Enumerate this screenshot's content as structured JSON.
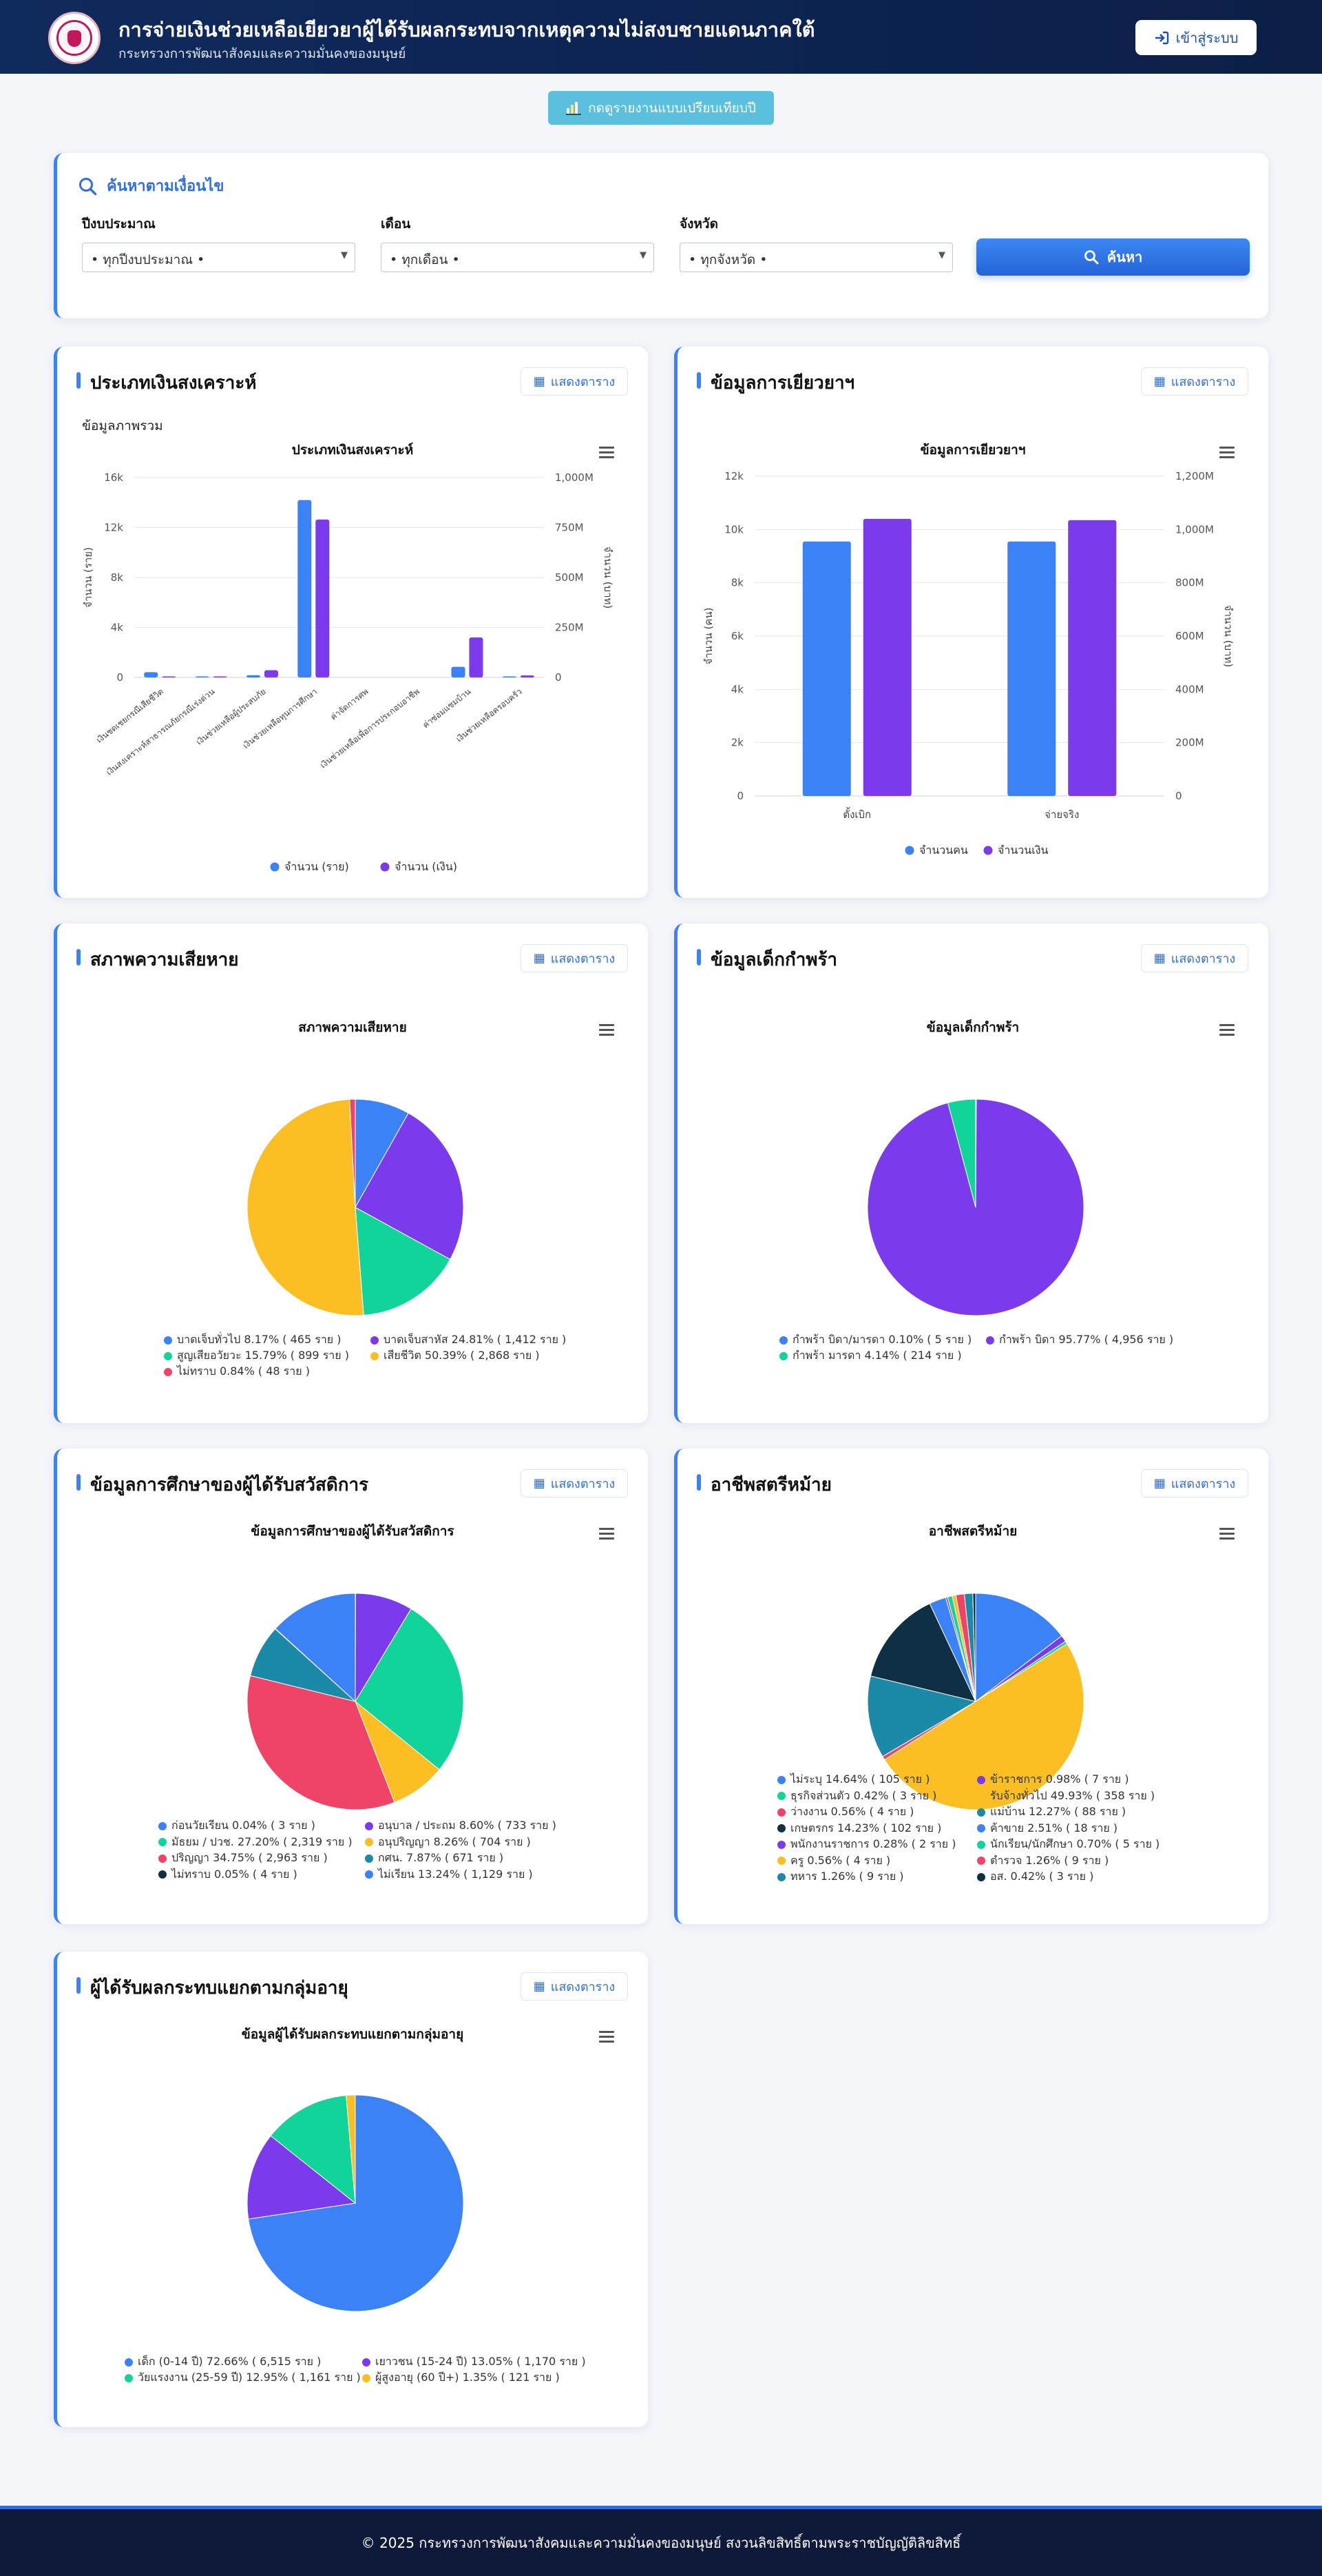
{
  "header": {
    "title": "การจ่ายเงินช่วยเหลือเยียวยาผู้ได้รับผลกระทบจากเหตุความไม่สงบชายแดนภาคใต้",
    "subtitle": "กระทรวงการพัฒนาสังคมและความมั่นคงของมนุษย์",
    "login_label": "เข้าสู่ระบบ"
  },
  "compare_button": "กดดูรายงานแบบเปรียบเทียบปี",
  "search": {
    "title": "ค้นหาตามเงื่อนไข",
    "fields": [
      {
        "label": "ปีงบประมาณ",
        "value": "• ทุกปีงบประมาณ •"
      },
      {
        "label": "เดือน",
        "value": "• ทุกเดือน •"
      },
      {
        "label": "จังหวัด",
        "value": "• ทุกจังหวัด •"
      }
    ],
    "button": "ค้นหา"
  },
  "table_button_label": "แสดงตาราง",
  "cards": {
    "welfare_type": {
      "title": "ประเภทเงินสงเคราะห์",
      "subtitle": "ข้อมูลภาพรวม",
      "chart_title": "ประเภทเงินสงเคราะห์"
    },
    "remedy": {
      "title": "ข้อมูลการเยียวยาฯ",
      "chart_title": "ข้อมูลการเยียวยาฯ"
    },
    "damage": {
      "title": "สภาพความเสียหาย",
      "chart_title": "สภาพความเสียหาย"
    },
    "orphan": {
      "title": "ข้อมูลเด็กกำพร้า",
      "chart_title": "ข้อมูลเด็กกำพร้า"
    },
    "education": {
      "title": "ข้อมูลการศึกษาของผู้ได้รับสวัสดิการ",
      "chart_title": "ข้อมูลการศึกษาของผู้ได้รับสวัสดิการ"
    },
    "widow": {
      "title": "อาชีพสตรีหม้าย",
      "chart_title": "อาชีพสตรีหม้าย"
    },
    "age": {
      "title": "ผู้ได้รับผลกระทบแยกตามกลุ่มอายุ",
      "chart_title": "ข้อมูลผู้ได้รับผลกระทบแยกตามกลุ่มอายุ"
    }
  },
  "footer": "© 2025 กระทรวงการพัฒนาสังคมและความมั่นคงของมนุษย์ สงวนลิขสิทธิ์ตามพระราชบัญญัติลิขสิทธิ์",
  "chart_data": [
    {
      "id": "welfare_type",
      "type": "bar",
      "title": "ประเภทเงินสงเคราะห์",
      "ylabel": "จำนวน (ราย)",
      "ylabel_right": "จำนวน (บาท)",
      "ylim": [
        0,
        16000
      ],
      "ylim_right": [
        0,
        1000000000
      ],
      "y_ticks": [
        "0",
        "4k",
        "8k",
        "12k",
        "16k"
      ],
      "y_ticks_right": [
        "0",
        "250M",
        "500M",
        "750M",
        "1,000M"
      ],
      "categories": [
        "เงินชดเชยกรณีเสียชีวิต",
        "เงินสงเคราะห์สาธารณภัยกรณีเร่งด่วน",
        "เงินช่วยเหลือผู้ประสบภัย",
        "เงินช่วยเหลือทุนการศึกษา",
        "ค่าจัดการศพ",
        "เงินช่วยเหลือเพื่อการประกอบอาชีพ",
        "ค่าซ่อมแซมบ้าน",
        "เงินช่วยเหลือครอบครัว"
      ],
      "series": [
        {
          "name": "จำนวน (ราย)",
          "axis": "left",
          "color": "#3b82f6",
          "values": [
            420,
            30,
            180,
            14200,
            0,
            0,
            850,
            60
          ]
        },
        {
          "name": "จำนวน (เงิน)",
          "axis": "right",
          "color": "#7c3aed",
          "values": [
            2000000,
            1000000,
            36000000,
            790000000,
            0,
            0,
            200000000,
            10000000
          ]
        }
      ],
      "legend": "bottom"
    },
    {
      "id": "remedy",
      "type": "bar",
      "title": "ข้อมูลการเยียวยาฯ",
      "ylabel": "จำนวน (คน)",
      "ylabel_right": "จำนวน (บาท)",
      "ylim": [
        0,
        12000
      ],
      "ylim_right": [
        0,
        1200000000
      ],
      "y_ticks": [
        "0",
        "2k",
        "4k",
        "6k",
        "8k",
        "10k",
        "12k"
      ],
      "y_ticks_right": [
        "0",
        "200M",
        "400M",
        "600M",
        "800M",
        "1,000M",
        "1,200M"
      ],
      "categories": [
        "ตั้งเบิก",
        "จ่ายจริง"
      ],
      "series": [
        {
          "name": "จำนวนคน",
          "axis": "left",
          "color": "#3b82f6",
          "values": [
            9550,
            9550
          ]
        },
        {
          "name": "จำนวนเงิน",
          "axis": "right",
          "color": "#7c3aed",
          "values": [
            1040000000,
            1035000000
          ]
        }
      ],
      "legend": "bottom"
    },
    {
      "id": "damage",
      "type": "pie",
      "title": "สภาพความเสียหาย",
      "slices": [
        {
          "label": "บาดเจ็บทั่วไป 8.17% ( 465 ราย )",
          "value": 8.17,
          "color": "#3b82f6"
        },
        {
          "label": "บาดเจ็บสาหัส 24.81% ( 1,412 ราย )",
          "value": 24.81,
          "color": "#7c3aed"
        },
        {
          "label": "สูญเสียอวัยวะ 15.79% ( 899 ราย )",
          "value": 15.79,
          "color": "#10d49a"
        },
        {
          "label": "เสียชีวิต 50.39% ( 2,868 ราย )",
          "value": 50.39,
          "color": "#fbbf24"
        },
        {
          "label": "ไม่ทราบ 0.84% ( 48 ราย )",
          "value": 0.84,
          "color": "#ef4468"
        }
      ]
    },
    {
      "id": "orphan",
      "type": "pie",
      "title": "ข้อมูลเด็กกำพร้า",
      "slices": [
        {
          "label": "กำพร้า บิดา/มารดา 0.10% ( 5 ราย )",
          "value": 0.1,
          "color": "#3b82f6"
        },
        {
          "label": "กำพร้า บิดา 95.77% ( 4,956 ราย )",
          "value": 95.77,
          "color": "#7c3aed"
        },
        {
          "label": "กำพร้า มารดา 4.14% ( 214 ราย )",
          "value": 4.14,
          "color": "#10d49a"
        }
      ]
    },
    {
      "id": "education",
      "type": "pie",
      "title": "ข้อมูลการศึกษาของผู้ได้รับสวัสดิการ",
      "slices": [
        {
          "label": "ก่อนวัยเรียน 0.04% ( 3 ราย )",
          "value": 0.04,
          "color": "#3b82f6"
        },
        {
          "label": "อนุบาล / ประถม 8.60% ( 733 ราย )",
          "value": 8.6,
          "color": "#7c3aed"
        },
        {
          "label": "มัธยม / ปวช. 27.20% ( 2,319 ราย )",
          "value": 27.2,
          "color": "#10d49a"
        },
        {
          "label": "อนุปริญญา 8.26% ( 704 ราย )",
          "value": 8.26,
          "color": "#fbbf24"
        },
        {
          "label": "ปริญญา 34.75% ( 2,963 ราย )",
          "value": 34.75,
          "color": "#ef4468"
        },
        {
          "label": "กศน. 7.87% ( 671 ราย )",
          "value": 7.87,
          "color": "#1b8aa8"
        },
        {
          "label": "ไม่ทราบ 0.05% ( 4 ราย )",
          "value": 0.05,
          "color": "#0e2f44"
        },
        {
          "label": "ไม่เรียน 13.24% ( 1,129 ราย )",
          "value": 13.24,
          "color": "#3b82f6"
        }
      ]
    },
    {
      "id": "widow",
      "type": "pie",
      "title": "อาชีพสตรีหม้าย",
      "slices": [
        {
          "label": "ไม่ระบุ 14.64% ( 105 ราย )",
          "value": 14.64,
          "color": "#3b82f6"
        },
        {
          "label": "ข้าราชการ 0.98% ( 7 ราย )",
          "value": 0.98,
          "color": "#7c3aed"
        },
        {
          "label": "ธุรกิจส่วนตัว 0.42% ( 3 ราย )",
          "value": 0.42,
          "color": "#10d49a"
        },
        {
          "label": "รับจ้างทั่วไป 49.93% ( 358 ราย )",
          "value": 49.93,
          "color": "#fbbf24"
        },
        {
          "label": "ว่างงาน 0.56% ( 4 ราย )",
          "value": 0.56,
          "color": "#ef4468"
        },
        {
          "label": "แม่บ้าน 12.27% ( 88 ราย )",
          "value": 12.27,
          "color": "#1b8aa8"
        },
        {
          "label": "เกษตรกร 14.23% ( 102 ราย )",
          "value": 14.23,
          "color": "#0e2f44"
        },
        {
          "label": "ค้าขาย 2.51% ( 18 ราย )",
          "value": 2.51,
          "color": "#3b82f6"
        },
        {
          "label": "พนักงานราชการ 0.28% ( 2 ราย )",
          "value": 0.28,
          "color": "#7c3aed"
        },
        {
          "label": "นักเรียน/นักศึกษา 0.70% ( 5 ราย )",
          "value": 0.7,
          "color": "#10d49a"
        },
        {
          "label": "ครู 0.56% ( 4 ราย )",
          "value": 0.56,
          "color": "#fbbf24"
        },
        {
          "label": "ตำรวจ 1.26% ( 9 ราย )",
          "value": 1.26,
          "color": "#ef4468"
        },
        {
          "label": "ทหาร 1.26% ( 9 ราย )",
          "value": 1.26,
          "color": "#1b8aa8"
        },
        {
          "label": "อส. 0.42% ( 3 ราย )",
          "value": 0.42,
          "color": "#0e2f44"
        }
      ]
    },
    {
      "id": "age",
      "type": "pie",
      "title": "ข้อมูลผู้ได้รับผลกระทบแยกตามกลุ่มอายุ",
      "slices": [
        {
          "label": "เด็ก (0-14 ปี) 72.66% ( 6,515 ราย )",
          "value": 72.66,
          "color": "#3b82f6"
        },
        {
          "label": "เยาวชน (15-24 ปี) 13.05% ( 1,170 ราย )",
          "value": 13.05,
          "color": "#7c3aed"
        },
        {
          "label": "วัยแรงงาน (25-59 ปี) 12.95% ( 1,161 ราย )",
          "value": 12.95,
          "color": "#10d49a"
        },
        {
          "label": "ผู้สูงอายุ (60 ปี+) 1.35% ( 121 ราย )",
          "value": 1.35,
          "color": "#fbbf24"
        }
      ]
    }
  ]
}
